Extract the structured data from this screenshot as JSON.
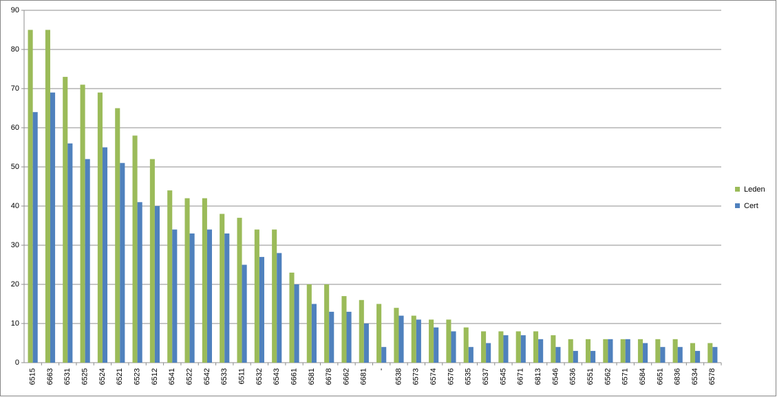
{
  "chart_data": {
    "type": "bar",
    "categories": [
      "6515",
      "6663",
      "6531",
      "6525",
      "6524",
      "6521",
      "6523",
      "6512",
      "6541",
      "6522",
      "6542",
      "6533",
      "6511",
      "6532",
      "6543",
      "6661",
      "6581",
      "6678",
      "6662",
      "6681",
      "-",
      "6538",
      "6573",
      "6574",
      "6576",
      "6535",
      "6537",
      "6545",
      "6671",
      "6813",
      "6546",
      "6536",
      "6551",
      "6562",
      "6571",
      "6584",
      "6651",
      "6836",
      "6534",
      "6578"
    ],
    "series": [
      {
        "name": "Leden",
        "color": "#9bbb59",
        "values": [
          85,
          85,
          73,
          71,
          69,
          65,
          58,
          52,
          44,
          42,
          42,
          38,
          37,
          34,
          34,
          23,
          20,
          20,
          17,
          16,
          15,
          14,
          12,
          11,
          11,
          9,
          8,
          8,
          8,
          8,
          7,
          6,
          6,
          6,
          6,
          6,
          6,
          6,
          5,
          5
        ]
      },
      {
        "name": "Cert",
        "color": "#4f81bd",
        "values": [
          64,
          69,
          56,
          52,
          55,
          51,
          41,
          40,
          34,
          33,
          34,
          33,
          25,
          27,
          28,
          20,
          15,
          13,
          13,
          10,
          4,
          12,
          11,
          9,
          8,
          4,
          5,
          7,
          7,
          6,
          4,
          3,
          3,
          6,
          6,
          5,
          4,
          4,
          3,
          4
        ]
      }
    ],
    "ylim": [
      0,
      90
    ],
    "yticks": [
      0,
      10,
      20,
      30,
      40,
      50,
      60,
      70,
      80,
      90
    ],
    "grid": true,
    "legend": "right"
  }
}
